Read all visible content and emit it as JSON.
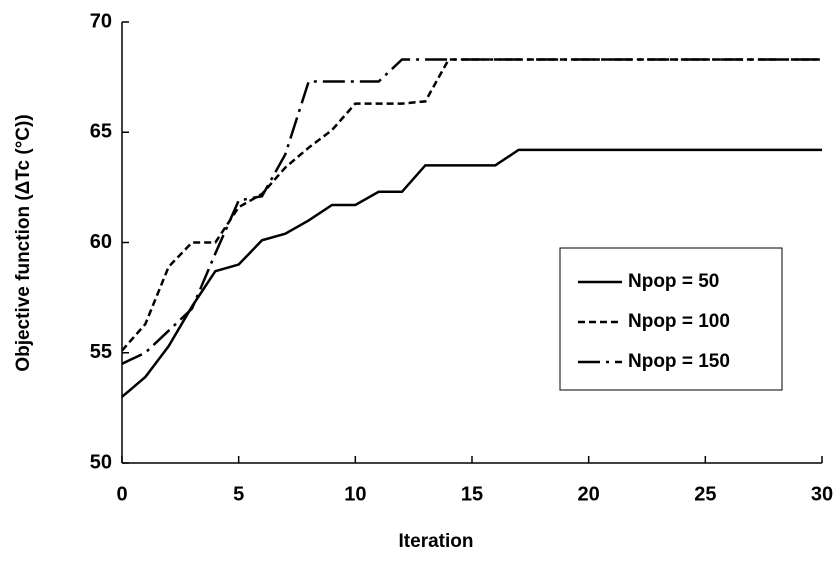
{
  "chart_data": {
    "type": "line",
    "xlabel": "Iteration",
    "ylabel": "Objective function (ΔTc (°C))",
    "x": [
      0,
      1,
      2,
      3,
      4,
      5,
      6,
      7,
      8,
      9,
      10,
      11,
      12,
      13,
      14,
      15,
      16,
      17,
      18,
      19,
      20,
      21,
      22,
      23,
      24,
      25,
      26,
      27,
      28,
      29,
      30
    ],
    "series": [
      {
        "name": "Npop = 50",
        "color": "#000000",
        "dash": "solid",
        "values": [
          53.0,
          53.9,
          55.3,
          57.1,
          58.7,
          59.0,
          60.1,
          60.4,
          61.0,
          61.7,
          61.7,
          62.3,
          62.3,
          63.5,
          63.5,
          63.5,
          63.5,
          64.2,
          64.2,
          64.2,
          64.2,
          64.2,
          64.2,
          64.2,
          64.2,
          64.2,
          64.2,
          64.2,
          64.2,
          64.2,
          64.2
        ]
      },
      {
        "name": "Npop = 100",
        "color": "#000000",
        "dash": "dashed",
        "values": [
          55.1,
          56.3,
          58.9,
          60.0,
          60.0,
          61.6,
          62.2,
          63.4,
          64.3,
          65.1,
          66.3,
          66.3,
          66.3,
          66.4,
          68.3,
          68.3,
          68.3,
          68.3,
          68.3,
          68.3,
          68.3,
          68.3,
          68.3,
          68.3,
          68.3,
          68.3,
          68.3,
          68.3,
          68.3,
          68.3,
          68.3
        ]
      },
      {
        "name": "Npop = 150",
        "color": "#000000",
        "dash": "dashdot",
        "values": [
          54.5,
          55.0,
          56.0,
          57.0,
          59.5,
          61.9,
          62.1,
          64.0,
          67.3,
          67.3,
          67.3,
          67.3,
          68.3,
          68.3,
          68.3,
          68.3,
          68.3,
          68.3,
          68.3,
          68.3,
          68.3,
          68.3,
          68.3,
          68.3,
          68.3,
          68.3,
          68.3,
          68.3,
          68.3,
          68.3,
          68.3
        ]
      }
    ],
    "xlim": [
      0,
      30
    ],
    "xticks": [
      0,
      5,
      10,
      15,
      20,
      25,
      30
    ],
    "ylim": [
      50,
      70
    ],
    "yticks": [
      50,
      55,
      60,
      65,
      70
    ],
    "grid": false,
    "legend": "right"
  }
}
